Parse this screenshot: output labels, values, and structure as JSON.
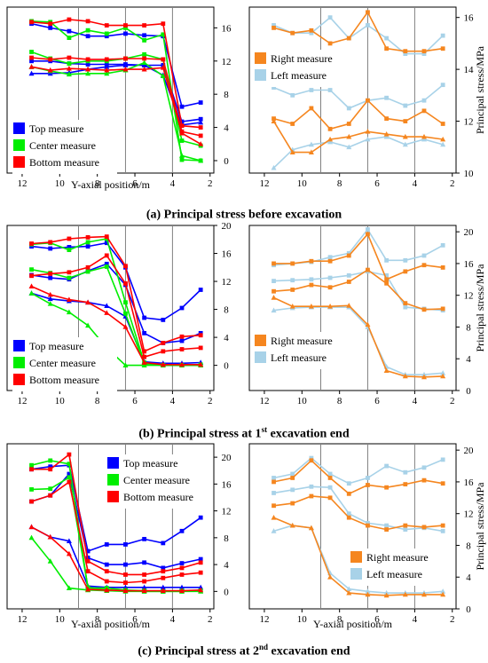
{
  "figure": {
    "captions": [
      {
        "prefix": "(a) Principal stress before excavation",
        "sup": "",
        "suffix": ""
      },
      {
        "prefix": "(b) Principal stress at 1",
        "sup": "st",
        "suffix": " excavation end"
      },
      {
        "prefix": "(c) Principal stress at 2",
        "sup": "nd",
        "suffix": " excavation end"
      }
    ]
  },
  "colors": {
    "top": "#0000ff",
    "center": "#00ee00",
    "bottom": "#ff0000",
    "right": "#f5861f",
    "left": "#a8d2e8",
    "divider": "#808080"
  },
  "chart_data": [
    {
      "type": "line",
      "panel": "a-left",
      "xlabel": "Y-axial position/m",
      "ylabel": "",
      "xlim": [
        12.8,
        1.8
      ],
      "xticks": [
        12,
        10,
        8,
        6,
        4,
        2
      ],
      "ylim": [
        -1.5,
        18.5
      ],
      "yticks": [
        0,
        4,
        8,
        12,
        16
      ],
      "y_axis_side": "right",
      "dividers": [
        9.0,
        6.5,
        4.0
      ],
      "x": [
        11.5,
        10.5,
        9.5,
        8.5,
        7.5,
        6.5,
        5.5,
        4.5,
        3.5,
        2.5
      ],
      "legend": {
        "position": "bottom-left",
        "entries": [
          {
            "name": "Top measure",
            "color_key": "top"
          },
          {
            "name": "Center measure",
            "color_key": "center"
          },
          {
            "name": "Bottom measure",
            "color_key": "bottom"
          }
        ]
      },
      "series": [
        {
          "color_key": "top",
          "marker": "square",
          "values": [
            16.5,
            16.0,
            15.6,
            15.0,
            15.0,
            15.3,
            15.1,
            15.0,
            6.5,
            7.0
          ]
        },
        {
          "color_key": "top",
          "marker": "square",
          "values": [
            12.0,
            12.0,
            11.7,
            11.6,
            11.6,
            11.6,
            11.5,
            11.5,
            4.7,
            5.0
          ]
        },
        {
          "color_key": "top",
          "marker": "triangle",
          "values": [
            10.5,
            10.5,
            10.6,
            11.0,
            11.3,
            11.5,
            11.5,
            10.3,
            4.3,
            4.6
          ]
        },
        {
          "color_key": "center",
          "marker": "square",
          "values": [
            16.8,
            16.7,
            14.8,
            15.7,
            15.3,
            16.0,
            14.5,
            15.2,
            0.1,
            0.0
          ]
        },
        {
          "color_key": "center",
          "marker": "square",
          "values": [
            13.1,
            12.3,
            11.7,
            12.0,
            12.0,
            12.3,
            12.8,
            12.2,
            2.4,
            1.8
          ]
        },
        {
          "color_key": "center",
          "marker": "triangle",
          "values": [
            11.3,
            10.8,
            10.4,
            10.5,
            10.5,
            10.9,
            11.8,
            10.2,
            0.6,
            0.0
          ]
        },
        {
          "color_key": "bottom",
          "marker": "square",
          "values": [
            16.7,
            16.5,
            17.0,
            16.8,
            16.3,
            16.3,
            16.3,
            16.5,
            4.2,
            4.0
          ]
        },
        {
          "color_key": "bottom",
          "marker": "square",
          "values": [
            12.4,
            12.2,
            12.4,
            12.2,
            12.2,
            12.3,
            12.3,
            12.2,
            3.5,
            3.0
          ]
        },
        {
          "color_key": "bottom",
          "marker": "triangle",
          "values": [
            11.3,
            10.9,
            11.1,
            11.0,
            10.9,
            11.0,
            11.0,
            11.2,
            3.3,
            2.0
          ]
        }
      ]
    },
    {
      "type": "line",
      "panel": "a-right",
      "xlabel": "",
      "ylabel": "Principal stress/MPa",
      "xlim": [
        12.8,
        1.8
      ],
      "xticks": [
        12,
        10,
        8,
        6,
        4,
        2
      ],
      "ylim": [
        10,
        16.4
      ],
      "yticks": [
        10,
        12,
        14,
        16
      ],
      "y_axis_side": "right",
      "dividers": [
        9.0,
        6.5,
        4.0
      ],
      "x": [
        11.5,
        10.5,
        9.5,
        8.5,
        7.5,
        6.5,
        5.5,
        4.5,
        3.5,
        2.5
      ],
      "legend": {
        "position": "top-right",
        "entries": [
          {
            "name": "Right measure",
            "color_key": "right"
          },
          {
            "name": "Left measure",
            "color_key": "left"
          }
        ]
      },
      "series": [
        {
          "color_key": "left",
          "marker": "square",
          "values": [
            15.7,
            15.4,
            15.4,
            16.0,
            15.2,
            15.7,
            15.2,
            14.6,
            14.6,
            15.3
          ]
        },
        {
          "color_key": "left",
          "marker": "square",
          "values": [
            13.3,
            13.0,
            13.2,
            13.2,
            12.5,
            12.8,
            12.9,
            12.6,
            12.8,
            13.4
          ]
        },
        {
          "color_key": "left",
          "marker": "triangle",
          "values": [
            10.2,
            10.9,
            11.1,
            11.2,
            11.0,
            11.3,
            11.4,
            11.1,
            11.3,
            11.1
          ]
        },
        {
          "color_key": "right",
          "marker": "square",
          "values": [
            15.6,
            15.4,
            15.5,
            15.0,
            15.2,
            16.2,
            14.8,
            14.7,
            14.7,
            14.8
          ]
        },
        {
          "color_key": "right",
          "marker": "square",
          "values": [
            12.1,
            11.9,
            12.5,
            11.7,
            11.9,
            12.8,
            12.1,
            12.0,
            12.4,
            11.9
          ]
        },
        {
          "color_key": "right",
          "marker": "triangle",
          "values": [
            12.0,
            10.8,
            10.8,
            11.3,
            11.4,
            11.6,
            11.5,
            11.4,
            11.4,
            11.3
          ]
        }
      ]
    },
    {
      "type": "line",
      "panel": "b-left",
      "xlabel": "",
      "ylabel": "",
      "xlim": [
        12.8,
        1.8
      ],
      "xticks": [
        12,
        10,
        8,
        6,
        4,
        2
      ],
      "ylim": [
        -3.6,
        20
      ],
      "yticks": [
        0,
        4,
        8,
        12,
        16,
        20
      ],
      "y_axis_side": "right",
      "dividers": [
        9.0,
        6.5,
        4.0
      ],
      "x": [
        11.5,
        10.5,
        9.5,
        8.5,
        7.5,
        6.5,
        5.5,
        4.5,
        3.5,
        2.5
      ],
      "legend": {
        "position": "bottom-left",
        "entries": [
          {
            "name": "Top measure",
            "color_key": "top"
          },
          {
            "name": "Center measure",
            "color_key": "center"
          },
          {
            "name": "Bottom measure",
            "color_key": "bottom"
          }
        ]
      },
      "series": [
        {
          "color_key": "top",
          "marker": "square",
          "values": [
            17.0,
            16.7,
            16.9,
            17.0,
            17.5,
            14.0,
            6.8,
            6.5,
            8.2,
            10.8
          ]
        },
        {
          "color_key": "top",
          "marker": "square",
          "values": [
            12.9,
            12.5,
            12.3,
            13.5,
            14.5,
            11.5,
            4.6,
            3.2,
            3.5,
            4.6
          ]
        },
        {
          "color_key": "top",
          "marker": "triangle",
          "values": [
            10.3,
            9.5,
            9.2,
            9.0,
            8.5,
            7.0,
            0.5,
            0.3,
            0.3,
            0.4
          ]
        },
        {
          "color_key": "center",
          "marker": "square",
          "values": [
            17.3,
            17.5,
            16.5,
            17.6,
            18.1,
            9.0,
            0.4,
            0.0,
            0.0,
            0.1
          ]
        },
        {
          "color_key": "center",
          "marker": "square",
          "values": [
            13.7,
            13.2,
            12.5,
            13.4,
            14.1,
            7.4,
            0.2,
            0.0,
            0.0,
            0.0
          ]
        },
        {
          "color_key": "center",
          "marker": "triangle",
          "values": [
            10.3,
            8.8,
            7.6,
            5.7,
            2.5,
            0.0,
            0.0,
            0.0,
            0.0,
            0.0
          ]
        },
        {
          "color_key": "bottom",
          "marker": "square",
          "values": [
            17.4,
            17.6,
            18.1,
            18.3,
            18.4,
            14.2,
            2.0,
            3.2,
            4.1,
            4.3
          ]
        },
        {
          "color_key": "bottom",
          "marker": "square",
          "values": [
            12.8,
            13.1,
            13.3,
            14.0,
            15.7,
            11.7,
            1.2,
            2.0,
            2.3,
            2.5
          ]
        },
        {
          "color_key": "bottom",
          "marker": "triangle",
          "values": [
            11.3,
            10.1,
            9.4,
            9.0,
            7.5,
            5.5,
            0.4,
            0.1,
            0.1,
            0.1
          ]
        }
      ]
    },
    {
      "type": "line",
      "panel": "b-right",
      "xlabel": "",
      "ylabel": "Principal stress/MPa",
      "xlim": [
        12.8,
        1.8
      ],
      "xticks": [
        12,
        10,
        8,
        6,
        4,
        2
      ],
      "ylim": [
        0,
        20.8
      ],
      "yticks": [
        0,
        4,
        8,
        12,
        16,
        20
      ],
      "y_axis_side": "right",
      "dividers": [
        9.0,
        6.5,
        4.0
      ],
      "x": [
        11.5,
        10.5,
        9.5,
        8.5,
        7.5,
        6.5,
        5.5,
        4.5,
        3.5,
        2.5
      ],
      "legend": {
        "position": "bottom-left",
        "entries": [
          {
            "name": "Right measure",
            "color_key": "right"
          },
          {
            "name": "Left measure",
            "color_key": "left"
          }
        ]
      },
      "series": [
        {
          "color_key": "left",
          "marker": "square",
          "values": [
            15.8,
            16.0,
            16.2,
            16.8,
            17.3,
            20.3,
            16.4,
            16.4,
            17.0,
            18.3
          ]
        },
        {
          "color_key": "left",
          "marker": "square",
          "values": [
            13.8,
            13.9,
            14.0,
            14.2,
            14.5,
            15.0,
            14.5,
            10.5,
            10.3,
            10.1
          ]
        },
        {
          "color_key": "left",
          "marker": "triangle",
          "values": [
            10.1,
            10.4,
            10.5,
            10.5,
            10.5,
            8.0,
            3.0,
            2.0,
            2.0,
            2.2
          ]
        },
        {
          "color_key": "right",
          "marker": "square",
          "values": [
            16.0,
            16.0,
            16.3,
            16.3,
            17.0,
            19.7,
            14.0,
            15.0,
            15.8,
            15.5
          ]
        },
        {
          "color_key": "right",
          "marker": "square",
          "values": [
            12.5,
            12.7,
            13.3,
            13.0,
            13.7,
            15.2,
            13.5,
            11.0,
            10.2,
            10.3
          ]
        },
        {
          "color_key": "right",
          "marker": "triangle",
          "values": [
            11.7,
            10.6,
            10.6,
            10.6,
            10.7,
            8.3,
            2.5,
            1.8,
            1.7,
            1.8
          ]
        }
      ]
    },
    {
      "type": "line",
      "panel": "c-left",
      "xlabel": "Y-axial position/m",
      "ylabel": "",
      "xlim": [
        12.8,
        1.8
      ],
      "xticks": [
        12,
        10,
        8,
        6,
        4,
        2
      ],
      "ylim": [
        -2.6,
        22
      ],
      "yticks": [
        0,
        4,
        8,
        12,
        16,
        20
      ],
      "y_axis_side": "right",
      "dividers": [
        9.0,
        6.5,
        4.0
      ],
      "x": [
        11.5,
        10.5,
        9.5,
        8.5,
        7.5,
        6.5,
        5.5,
        4.5,
        3.5,
        2.5
      ],
      "legend": {
        "position": "top-right",
        "entries": [
          {
            "name": "Top measure",
            "color_key": "top"
          },
          {
            "name": "Center measure",
            "color_key": "center"
          },
          {
            "name": "Bottom measure",
            "color_key": "bottom"
          }
        ]
      },
      "series": [
        {
          "color_key": "top",
          "marker": "square",
          "values": [
            18.2,
            18.6,
            18.8,
            6.0,
            7.0,
            7.0,
            7.8,
            7.2,
            9.0,
            11.0
          ]
        },
        {
          "color_key": "top",
          "marker": "square",
          "values": [
            13.4,
            14.3,
            17.5,
            5.0,
            4.0,
            4.0,
            4.3,
            3.5,
            4.2,
            4.8
          ]
        },
        {
          "color_key": "top",
          "marker": "triangle",
          "values": [
            9.6,
            8.1,
            7.5,
            0.8,
            0.6,
            0.6,
            0.6,
            0.6,
            0.6,
            0.6
          ]
        },
        {
          "color_key": "center",
          "marker": "square",
          "values": [
            18.8,
            19.5,
            19.0,
            0.5,
            0.5,
            0.2,
            0.1,
            0.0,
            0.1,
            0.1
          ]
        },
        {
          "color_key": "center",
          "marker": "square",
          "values": [
            15.2,
            15.3,
            17.0,
            0.6,
            0.2,
            0.1,
            0.0,
            0.0,
            0.0,
            0.1
          ]
        },
        {
          "color_key": "center",
          "marker": "triangle",
          "values": [
            8.0,
            4.5,
            0.5,
            0.2,
            0.1,
            0.0,
            0.0,
            0.0,
            0.0,
            0.0
          ]
        },
        {
          "color_key": "bottom",
          "marker": "square",
          "values": [
            18.2,
            18.2,
            20.4,
            4.5,
            3.0,
            2.5,
            2.5,
            3.0,
            3.5,
            4.3
          ]
        },
        {
          "color_key": "bottom",
          "marker": "square",
          "values": [
            13.4,
            14.3,
            16.3,
            3.0,
            1.5,
            1.3,
            1.5,
            2.0,
            2.5,
            2.8
          ]
        },
        {
          "color_key": "bottom",
          "marker": "triangle",
          "values": [
            9.6,
            8.1,
            5.6,
            0.3,
            0.2,
            0.1,
            0.1,
            0.1,
            0.1,
            0.2
          ]
        }
      ]
    },
    {
      "type": "line",
      "panel": "c-right",
      "xlabel": "Y-axial position/m",
      "ylabel": "Principal stress/MPa",
      "xlim": [
        12.8,
        1.8
      ],
      "xticks": [
        12,
        10,
        8,
        6,
        4,
        2
      ],
      "ylim": [
        0,
        20.8
      ],
      "yticks": [
        0,
        4,
        8,
        12,
        16,
        20
      ],
      "y_axis_side": "right",
      "dividers": [
        9.0,
        6.5,
        4.0
      ],
      "x": [
        11.5,
        10.5,
        9.5,
        8.5,
        7.5,
        6.5,
        5.5,
        4.5,
        3.5,
        2.5
      ],
      "legend": {
        "position": "bottom-right",
        "entries": [
          {
            "name": "Right measure",
            "color_key": "right"
          },
          {
            "name": "Left measure",
            "color_key": "left"
          }
        ]
      },
      "series": [
        {
          "color_key": "left",
          "marker": "square",
          "values": [
            16.5,
            17.0,
            19.0,
            17.0,
            15.8,
            16.5,
            18.0,
            17.2,
            17.8,
            18.8
          ]
        },
        {
          "color_key": "left",
          "marker": "square",
          "values": [
            14.6,
            15.0,
            15.4,
            15.3,
            12.0,
            10.8,
            10.5,
            10.0,
            10.2,
            9.8
          ]
        },
        {
          "color_key": "left",
          "marker": "triangle",
          "values": [
            9.8,
            10.5,
            10.2,
            4.5,
            2.5,
            2.2,
            2.0,
            2.0,
            2.0,
            2.2
          ]
        },
        {
          "color_key": "right",
          "marker": "square",
          "values": [
            16.0,
            16.5,
            18.7,
            16.5,
            14.5,
            15.6,
            15.3,
            15.7,
            16.2,
            15.8
          ]
        },
        {
          "color_key": "right",
          "marker": "square",
          "values": [
            13.0,
            13.3,
            14.2,
            14.0,
            11.5,
            10.5,
            10.0,
            10.5,
            10.3,
            10.5
          ]
        },
        {
          "color_key": "right",
          "marker": "triangle",
          "values": [
            11.5,
            10.5,
            10.2,
            4.0,
            2.0,
            1.8,
            1.7,
            1.8,
            1.8,
            1.8
          ]
        }
      ]
    }
  ]
}
